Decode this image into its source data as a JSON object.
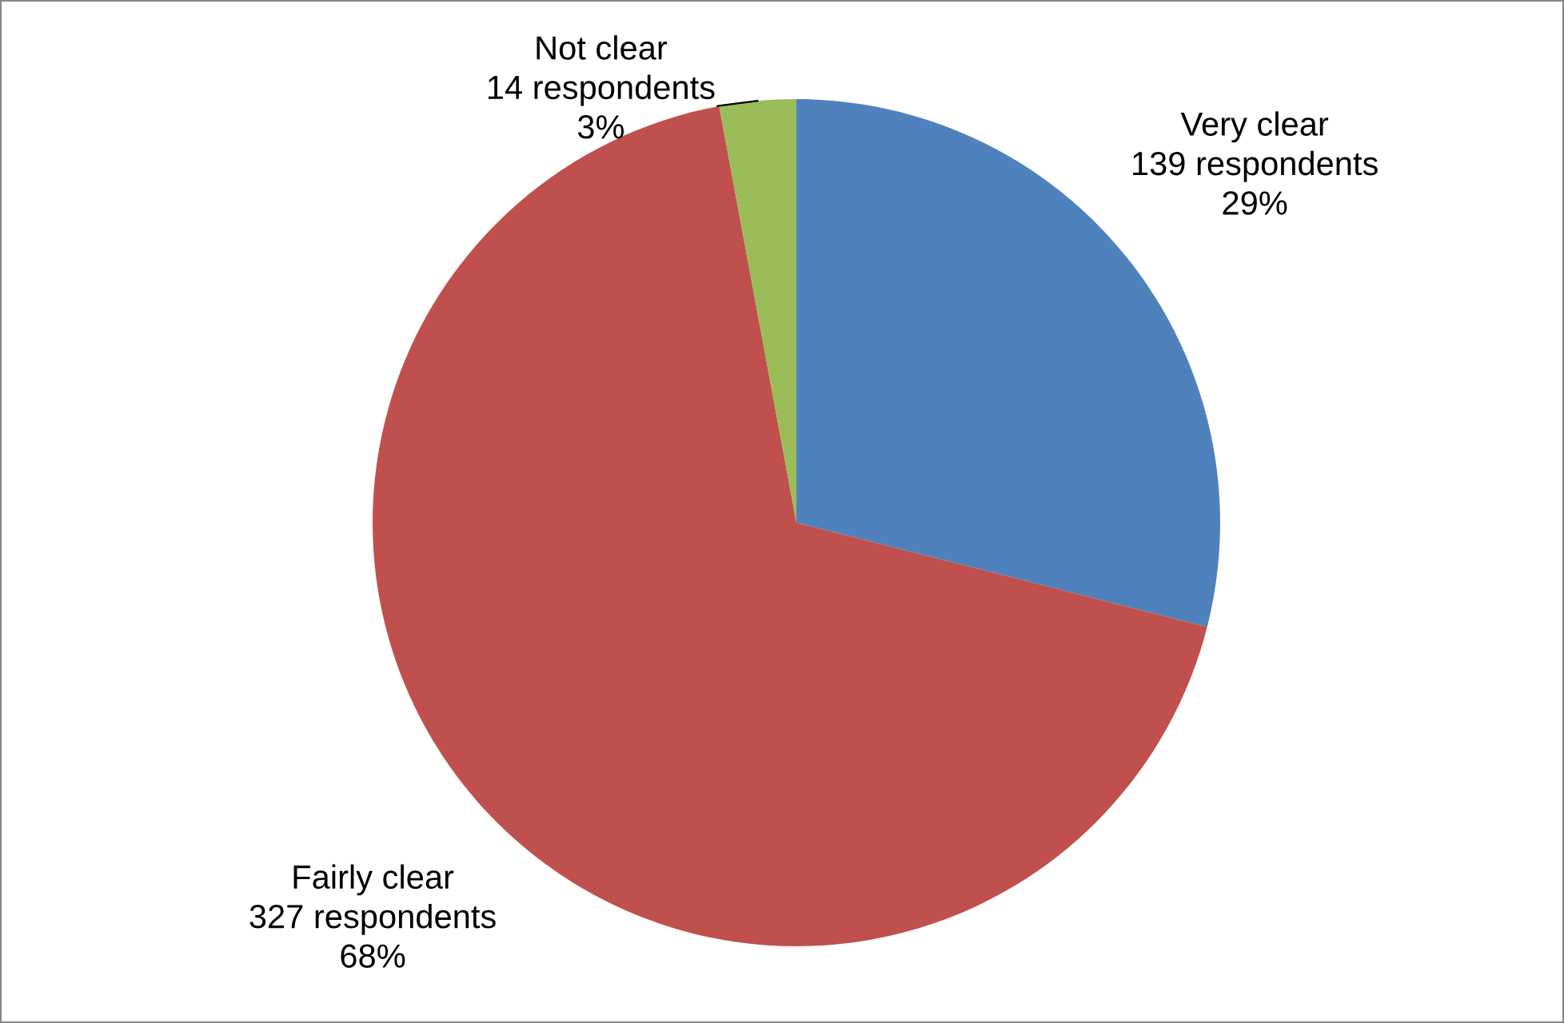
{
  "chart_data": {
    "type": "pie",
    "categories": [
      "Very clear",
      "Fairly clear",
      "Not clear"
    ],
    "values": [
      139,
      327,
      14
    ],
    "colors": [
      "#4f81bd",
      "#c0504d",
      "#9bbb59"
    ],
    "value_labels": [
      "139 respondents\n29%",
      "327 respondents\n68%",
      "14 respondents\n3%"
    ]
  }
}
